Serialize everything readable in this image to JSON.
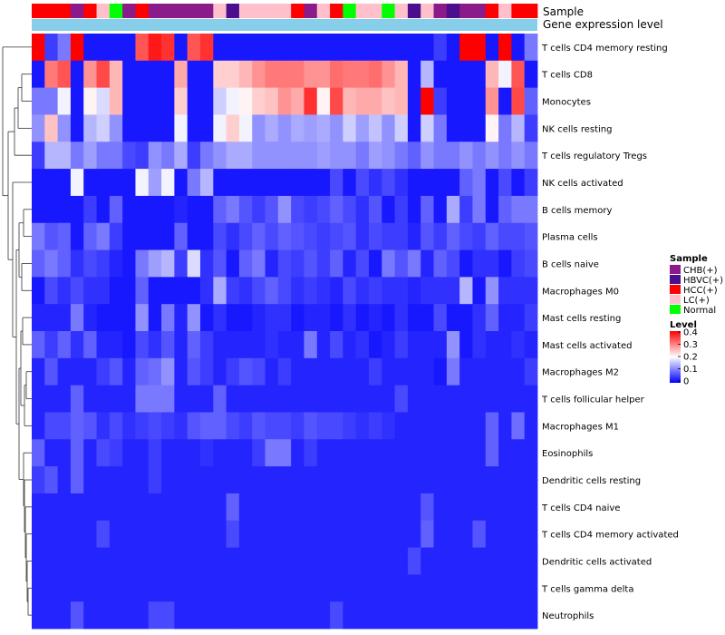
{
  "chart_data": {
    "type": "heatmap",
    "title": "",
    "annotation_tracks": [
      {
        "name": "Sample",
        "label": "Sample"
      },
      {
        "name": "Gene expression level",
        "label": "Gene expression level"
      }
    ],
    "sample_groups": [
      "HCC(+)",
      "HCC(+)",
      "HCC(+)",
      "CHB(+)",
      "HCC(+)",
      "LC(+)",
      "Normal",
      "CHB(+)",
      "HCC(+)",
      "CHB(+)",
      "CHB(+)",
      "CHB(+)",
      "CHB(+)",
      "CHB(+)",
      "LC(+)",
      "HBVC(+)",
      "LC(+)",
      "LC(+)",
      "LC(+)",
      "LC(+)",
      "HCC(+)",
      "CHB(+)",
      "LC(+)",
      "HCC(+)",
      "Normal",
      "LC(+)",
      "LC(+)",
      "Normal",
      "LC(+)",
      "HBVC(+)",
      "LC(+)",
      "CHB(+)",
      "HBVC(+)",
      "CHB(+)",
      "CHB(+)",
      "HCC(+)",
      "LC(+)",
      "HCC(+)",
      "HCC(+)"
    ],
    "rows": [
      "T cells CD4 memory resting",
      "T cells CD8",
      "Monocytes",
      "NK cells resting",
      "T cells regulatory  Tregs",
      "NK cells activated",
      "B cells memory",
      "Plasma cells",
      "B cells naive",
      "Macrophages M0",
      "Mast cells resting",
      "Mast cells activated",
      "Macrophages M2",
      "T cells follicular helper",
      "Macrophages M1",
      "Eosinophils",
      "Dendritic cells resting",
      "T cells CD4 naive",
      "T cells CD4 memory activated",
      "Dendritic cells activated",
      "T cells gamma delta",
      "Neutrophils"
    ],
    "values": [
      [
        0.42,
        0.05,
        0.1,
        0.42,
        0.02,
        0.02,
        0.02,
        0.02,
        0.35,
        0.4,
        0.38,
        0.02,
        0.35,
        0.38,
        0.02,
        0.02,
        0.02,
        0.02,
        0.02,
        0.02,
        0.02,
        0.02,
        0.02,
        0.02,
        0.02,
        0.02,
        0.02,
        0.02,
        0.02,
        0.02,
        0.02,
        0.05,
        0.02,
        0.42,
        0.42,
        0.02,
        0.42,
        0.02,
        0.1
      ],
      [
        0.02,
        0.32,
        0.35,
        0.02,
        0.3,
        0.36,
        0.27,
        0.02,
        0.02,
        0.02,
        0.02,
        0.28,
        0.02,
        0.02,
        0.25,
        0.25,
        0.27,
        0.3,
        0.32,
        0.32,
        0.32,
        0.3,
        0.3,
        0.33,
        0.32,
        0.32,
        0.33,
        0.3,
        0.27,
        0.02,
        0.15,
        0.02,
        0.02,
        0.02,
        0.02,
        0.27,
        0.2,
        0.35,
        0.02
      ],
      [
        0.1,
        0.1,
        0.2,
        0.02,
        0.22,
        0.18,
        0.27,
        0.02,
        0.02,
        0.02,
        0.02,
        0.25,
        0.02,
        0.02,
        0.17,
        0.2,
        0.22,
        0.25,
        0.26,
        0.3,
        0.28,
        0.38,
        0.22,
        0.36,
        0.27,
        0.28,
        0.28,
        0.26,
        0.27,
        0.02,
        0.42,
        0.05,
        0.02,
        0.02,
        0.02,
        0.3,
        0.02,
        0.36,
        0.08
      ],
      [
        0.12,
        0.26,
        0.12,
        0.02,
        0.15,
        0.17,
        0.12,
        0.02,
        0.02,
        0.02,
        0.02,
        0.2,
        0.02,
        0.02,
        0.2,
        0.25,
        0.2,
        0.12,
        0.14,
        0.12,
        0.14,
        0.13,
        0.14,
        0.12,
        0.17,
        0.13,
        0.16,
        0.12,
        0.17,
        0.02,
        0.17,
        0.1,
        0.02,
        0.02,
        0.02,
        0.22,
        0.1,
        0.15,
        0.05
      ],
      [
        0.05,
        0.15,
        0.15,
        0.1,
        0.13,
        0.1,
        0.1,
        0.06,
        0.05,
        0.12,
        0.1,
        0.14,
        0.05,
        0.1,
        0.12,
        0.14,
        0.14,
        0.12,
        0.12,
        0.12,
        0.12,
        0.12,
        0.13,
        0.12,
        0.12,
        0.1,
        0.13,
        0.12,
        0.1,
        0.08,
        0.12,
        0.1,
        0.1,
        0.12,
        0.1,
        0.12,
        0.1,
        0.12,
        0.1
      ],
      [
        0.02,
        0.02,
        0.02,
        0.2,
        0.02,
        0.02,
        0.02,
        0.02,
        0.2,
        0.13,
        0.2,
        0.02,
        0.1,
        0.15,
        0.02,
        0.02,
        0.02,
        0.02,
        0.02,
        0.02,
        0.02,
        0.02,
        0.02,
        0.06,
        0.02,
        0.06,
        0.04,
        0.06,
        0.04,
        0.02,
        0.02,
        0.02,
        0.02,
        0.08,
        0.1,
        0.02,
        0.06,
        0.02,
        0.05
      ],
      [
        0.02,
        0.02,
        0.02,
        0.02,
        0.05,
        0.02,
        0.08,
        0.02,
        0.02,
        0.02,
        0.02,
        0.03,
        0.02,
        0.02,
        0.08,
        0.1,
        0.07,
        0.05,
        0.07,
        0.12,
        0.06,
        0.05,
        0.06,
        0.08,
        0.06,
        0.04,
        0.07,
        0.02,
        0.05,
        0.02,
        0.08,
        0.02,
        0.14,
        0.05,
        0.1,
        0.02,
        0.08,
        0.1,
        0.1
      ],
      [
        0.1,
        0.07,
        0.08,
        0.02,
        0.08,
        0.1,
        0.05,
        0.02,
        0.02,
        0.02,
        0.02,
        0.08,
        0.02,
        0.02,
        0.06,
        0.04,
        0.06,
        0.08,
        0.06,
        0.08,
        0.07,
        0.06,
        0.05,
        0.06,
        0.07,
        0.04,
        0.06,
        0.05,
        0.05,
        0.03,
        0.07,
        0.05,
        0.08,
        0.06,
        0.05,
        0.08,
        0.06,
        0.06,
        0.07
      ],
      [
        0.08,
        0.1,
        0.08,
        0.04,
        0.06,
        0.05,
        0.03,
        0.02,
        0.1,
        0.13,
        0.15,
        0.05,
        0.18,
        0.04,
        0.07,
        0.02,
        0.08,
        0.1,
        0.03,
        0.06,
        0.05,
        0.07,
        0.05,
        0.08,
        0.03,
        0.06,
        0.02,
        0.1,
        0.07,
        0.1,
        0.03,
        0.08,
        0.06,
        0.02,
        0.04,
        0.04,
        0.02,
        0.05,
        0.06
      ],
      [
        0.02,
        0.06,
        0.04,
        0.06,
        0.04,
        0.04,
        0.02,
        0.02,
        0.08,
        0.02,
        0.02,
        0.02,
        0.02,
        0.04,
        0.14,
        0.05,
        0.04,
        0.06,
        0.08,
        0.06,
        0.04,
        0.05,
        0.04,
        0.03,
        0.06,
        0.04,
        0.05,
        0.04,
        0.04,
        0.03,
        0.04,
        0.04,
        0.04,
        0.15,
        0.02,
        0.12,
        0.04,
        0.04,
        0.04
      ],
      [
        0.03,
        0.03,
        0.03,
        0.1,
        0.03,
        0.02,
        0.02,
        0.02,
        0.12,
        0.02,
        0.1,
        0.03,
        0.12,
        0.02,
        0.04,
        0.02,
        0.02,
        0.03,
        0.04,
        0.04,
        0.02,
        0.03,
        0.03,
        0.02,
        0.04,
        0.02,
        0.03,
        0.02,
        0.04,
        0.02,
        0.02,
        0.06,
        0.02,
        0.02,
        0.04,
        0.08,
        0.03,
        0.03,
        0.05
      ],
      [
        0.08,
        0.05,
        0.08,
        0.04,
        0.08,
        0.03,
        0.03,
        0.02,
        0.06,
        0.04,
        0.07,
        0.03,
        0.08,
        0.05,
        0.03,
        0.03,
        0.03,
        0.03,
        0.04,
        0.03,
        0.03,
        0.1,
        0.03,
        0.06,
        0.03,
        0.04,
        0.02,
        0.03,
        0.05,
        0.03,
        0.03,
        0.03,
        0.12,
        0.02,
        0.04,
        0.03,
        0.03,
        0.04,
        0.03
      ],
      [
        0.03,
        0.07,
        0.03,
        0.03,
        0.03,
        0.05,
        0.07,
        0.03,
        0.08,
        0.09,
        0.12,
        0.03,
        0.07,
        0.05,
        0.03,
        0.05,
        0.07,
        0.06,
        0.03,
        0.05,
        0.03,
        0.03,
        0.03,
        0.03,
        0.03,
        0.03,
        0.05,
        0.03,
        0.03,
        0.03,
        0.03,
        0.02,
        0.1,
        0.03,
        0.03,
        0.03,
        0.03,
        0.03,
        0.05
      ],
      [
        0.03,
        0.03,
        0.03,
        0.08,
        0.03,
        0.03,
        0.03,
        0.03,
        0.1,
        0.1,
        0.1,
        0.03,
        0.03,
        0.03,
        0.08,
        0.03,
        0.03,
        0.03,
        0.03,
        0.03,
        0.03,
        0.03,
        0.03,
        0.03,
        0.03,
        0.03,
        0.03,
        0.03,
        0.06,
        0.03,
        0.03,
        0.03,
        0.03,
        0.03,
        0.03,
        0.03,
        0.03,
        0.03,
        0.03
      ],
      [
        0.03,
        0.06,
        0.06,
        0.08,
        0.07,
        0.04,
        0.06,
        0.04,
        0.05,
        0.06,
        0.05,
        0.04,
        0.07,
        0.08,
        0.08,
        0.06,
        0.05,
        0.07,
        0.06,
        0.06,
        0.05,
        0.07,
        0.06,
        0.06,
        0.05,
        0.04,
        0.05,
        0.04,
        0.03,
        0.03,
        0.03,
        0.03,
        0.03,
        0.03,
        0.03,
        0.08,
        0.03,
        0.09,
        0.03
      ],
      [
        0.08,
        0.03,
        0.03,
        0.08,
        0.03,
        0.06,
        0.05,
        0.03,
        0.03,
        0.05,
        0.03,
        0.03,
        0.03,
        0.04,
        0.03,
        0.03,
        0.03,
        0.05,
        0.1,
        0.1,
        0.03,
        0.05,
        0.03,
        0.03,
        0.03,
        0.03,
        0.03,
        0.03,
        0.03,
        0.03,
        0.03,
        0.03,
        0.03,
        0.03,
        0.03,
        0.08,
        0.03,
        0.03,
        0.03
      ],
      [
        0.05,
        0.07,
        0.03,
        0.08,
        0.03,
        0.03,
        0.03,
        0.03,
        0.03,
        0.05,
        0.03,
        0.03,
        0.03,
        0.03,
        0.03,
        0.03,
        0.03,
        0.03,
        0.03,
        0.03,
        0.03,
        0.03,
        0.03,
        0.03,
        0.03,
        0.03,
        0.03,
        0.03,
        0.03,
        0.03,
        0.03,
        0.03,
        0.03,
        0.03,
        0.03,
        0.03,
        0.03,
        0.03,
        0.03
      ],
      [
        0.03,
        0.03,
        0.03,
        0.03,
        0.03,
        0.03,
        0.03,
        0.03,
        0.03,
        0.03,
        0.03,
        0.03,
        0.03,
        0.03,
        0.03,
        0.08,
        0.03,
        0.03,
        0.03,
        0.03,
        0.03,
        0.03,
        0.03,
        0.03,
        0.03,
        0.03,
        0.03,
        0.03,
        0.03,
        0.03,
        0.07,
        0.03,
        0.03,
        0.03,
        0.03,
        0.03,
        0.03,
        0.03,
        0.03
      ],
      [
        0.03,
        0.03,
        0.03,
        0.03,
        0.03,
        0.06,
        0.03,
        0.03,
        0.03,
        0.03,
        0.03,
        0.03,
        0.03,
        0.03,
        0.03,
        0.06,
        0.03,
        0.03,
        0.03,
        0.03,
        0.03,
        0.03,
        0.03,
        0.03,
        0.03,
        0.03,
        0.03,
        0.03,
        0.03,
        0.03,
        0.08,
        0.03,
        0.03,
        0.03,
        0.07,
        0.03,
        0.03,
        0.03,
        0.03
      ],
      [
        0.03,
        0.03,
        0.03,
        0.03,
        0.03,
        0.03,
        0.03,
        0.03,
        0.03,
        0.03,
        0.03,
        0.03,
        0.03,
        0.03,
        0.03,
        0.03,
        0.03,
        0.03,
        0.03,
        0.03,
        0.03,
        0.03,
        0.03,
        0.03,
        0.03,
        0.03,
        0.03,
        0.03,
        0.03,
        0.06,
        0.03,
        0.03,
        0.03,
        0.03,
        0.03,
        0.03,
        0.03,
        0.03,
        0.03
      ],
      [
        0.03,
        0.03,
        0.03,
        0.03,
        0.03,
        0.03,
        0.03,
        0.03,
        0.03,
        0.03,
        0.03,
        0.03,
        0.03,
        0.03,
        0.03,
        0.03,
        0.03,
        0.03,
        0.03,
        0.03,
        0.03,
        0.03,
        0.03,
        0.03,
        0.03,
        0.03,
        0.03,
        0.03,
        0.03,
        0.03,
        0.03,
        0.03,
        0.03,
        0.03,
        0.03,
        0.03,
        0.03,
        0.03,
        0.03
      ],
      [
        0.03,
        0.03,
        0.03,
        0.07,
        0.03,
        0.03,
        0.03,
        0.03,
        0.03,
        0.06,
        0.06,
        0.03,
        0.03,
        0.03,
        0.03,
        0.03,
        0.03,
        0.03,
        0.03,
        0.03,
        0.03,
        0.03,
        0.03,
        0.06,
        0.03,
        0.03,
        0.03,
        0.03,
        0.03,
        0.03,
        0.03,
        0.03,
        0.03,
        0.03,
        0.03,
        0.03,
        0.03,
        0.03,
        0.03
      ]
    ],
    "value_range": [
      0,
      0.42
    ],
    "legend": {
      "sample_title": "Sample",
      "sample_items": [
        {
          "label": "CHB(+)",
          "color": "#8B1A8B"
        },
        {
          "label": "HBVC(+)",
          "color": "#4B0E8C"
        },
        {
          "label": "HCC(+)",
          "color": "#FF0000"
        },
        {
          "label": "LC(+)",
          "color": "#FFC0CB"
        },
        {
          "label": "Normal",
          "color": "#00FF00"
        }
      ],
      "level_title": "Level",
      "level_ticks": [
        {
          "value": 0.4,
          "label": "0.4"
        },
        {
          "value": 0.3,
          "label": "0.3"
        },
        {
          "value": 0.2,
          "label": "0.2"
        },
        {
          "value": 0.1,
          "label": "0.1"
        },
        {
          "value": 0,
          "label": "0"
        }
      ],
      "placement": "right"
    },
    "colors": {
      "low": "#0000FF",
      "mid": "#FFFFFF",
      "high": "#FF0000",
      "expression_bar": "#87CEEB"
    }
  }
}
